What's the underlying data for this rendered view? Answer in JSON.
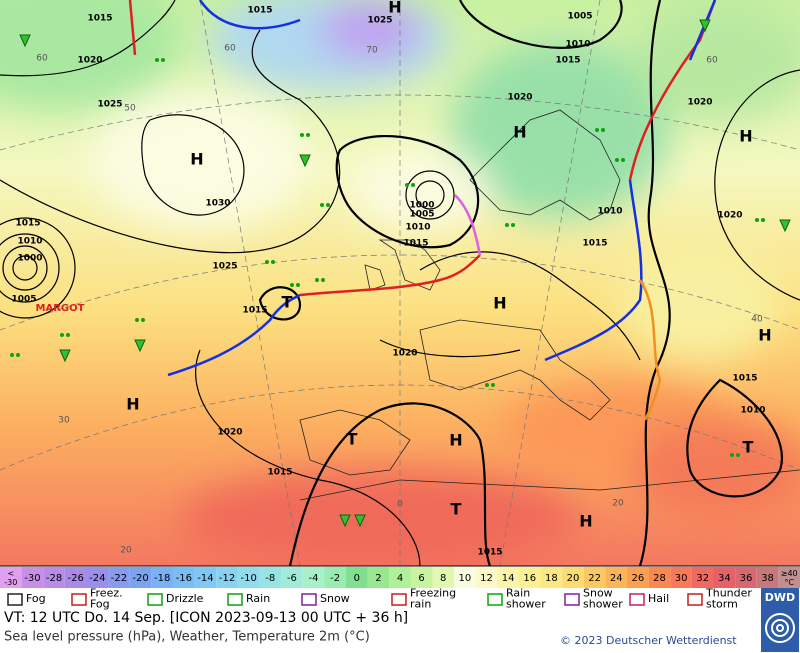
{
  "map": {
    "isobar_labels": [
      1015,
      1015,
      1025,
      1005,
      1020,
      1010,
      1015,
      1025,
      1020,
      1020,
      1030,
      1000,
      1005,
      1010,
      1015,
      1010,
      1015,
      1020,
      1015,
      1010,
      1000,
      1005,
      1025,
      1015,
      1020,
      1015,
      1010,
      1020,
      1015,
      1015
    ],
    "centers": [
      "H",
      "H",
      "H",
      "H",
      "H",
      "H",
      "H",
      "H",
      "T",
      "T",
      "T",
      "T",
      "H"
    ],
    "storm_name": "MARGOT",
    "temperature_labels": [
      60,
      50,
      60,
      70,
      60,
      40,
      30,
      20,
      20,
      0
    ]
  },
  "legend": {
    "scale": [
      {
        "label": [
          "<",
          "-30"
        ],
        "color": "#e0a0f0"
      },
      {
        "label": [
          "-30"
        ],
        "color": "#c88ee8"
      },
      {
        "label": [
          "-28"
        ],
        "color": "#b98ce8"
      },
      {
        "label": [
          "-26"
        ],
        "color": "#aa8ae8"
      },
      {
        "label": [
          "-24"
        ],
        "color": "#9a90ec"
      },
      {
        "label": [
          "-22"
        ],
        "color": "#8a9aec"
      },
      {
        "label": [
          "-20"
        ],
        "color": "#7aa4f0"
      },
      {
        "label": [
          "-18"
        ],
        "color": "#7ab0f4"
      },
      {
        "label": [
          "-16"
        ],
        "color": "#7abcf4"
      },
      {
        "label": [
          "-14"
        ],
        "color": "#80c8f4"
      },
      {
        "label": [
          "-12"
        ],
        "color": "#88d2f0"
      },
      {
        "label": [
          "-10"
        ],
        "color": "#90dcec"
      },
      {
        "label": [
          "-8"
        ],
        "color": "#98e4e4"
      },
      {
        "label": [
          "-6"
        ],
        "color": "#a0ecd8"
      },
      {
        "label": [
          "-4"
        ],
        "color": "#a8f0c8"
      },
      {
        "label": [
          "-2"
        ],
        "color": "#98ecb0"
      },
      {
        "label": [
          "0"
        ],
        "color": "#80e090"
      },
      {
        "label": [
          "2"
        ],
        "color": "#98e890"
      },
      {
        "label": [
          "4"
        ],
        "color": "#b0f098"
      },
      {
        "label": [
          "6"
        ],
        "color": "#c8f4a0"
      },
      {
        "label": [
          "8"
        ],
        "color": "#e0f8b0"
      },
      {
        "label": [
          "10"
        ],
        "color": "#f8fce0"
      },
      {
        "label": [
          "12"
        ],
        "color": "#fcf8c8"
      },
      {
        "label": [
          "14"
        ],
        "color": "#fcf4a8"
      },
      {
        "label": [
          "16"
        ],
        "color": "#fcf090"
      },
      {
        "label": [
          "18"
        ],
        "color": "#fce880"
      },
      {
        "label": [
          "20"
        ],
        "color": "#fcdc70"
      },
      {
        "label": [
          "22"
        ],
        "color": "#fcc860"
      },
      {
        "label": [
          "24"
        ],
        "color": "#fcb458"
      },
      {
        "label": [
          "26"
        ],
        "color": "#fca050"
      },
      {
        "label": [
          "28"
        ],
        "color": "#fc8850"
      },
      {
        "label": [
          "30"
        ],
        "color": "#f87858"
      },
      {
        "label": [
          "32"
        ],
        "color": "#f06860"
      },
      {
        "label": [
          "34"
        ],
        "color": "#e86068"
      },
      {
        "label": [
          "36"
        ],
        "color": "#d86870"
      },
      {
        "label": [
          "38"
        ],
        "color": "#c87878"
      },
      {
        "label": [
          "≥40",
          "°C"
        ],
        "color": "#c09090"
      }
    ],
    "symbols": [
      {
        "label": [
          "Fog"
        ]
      },
      {
        "label": [
          "Freez.",
          "Fog"
        ]
      },
      {
        "label": [
          "Drizzle"
        ]
      },
      {
        "label": [
          "Rain"
        ]
      },
      {
        "label": [
          "Snow"
        ]
      },
      {
        "label": [
          "Freezing",
          "rain"
        ]
      },
      {
        "label": [
          "Rain",
          "shower"
        ]
      },
      {
        "label": [
          "Snow",
          "shower"
        ]
      },
      {
        "label": [
          "Hail"
        ]
      },
      {
        "label": [
          "Thunder",
          "storm"
        ]
      }
    ]
  },
  "footer": {
    "valid_time": "VT: 12 UTC Do.  14 Sep. [ICON 2023-09-13  00 UTC + 36 h]",
    "description": "Sea level pressure (hPa), Weather, Temperature 2m (°C)",
    "copyright": "© 2023 Deutscher Wetterdienst",
    "logo": "DWD"
  }
}
